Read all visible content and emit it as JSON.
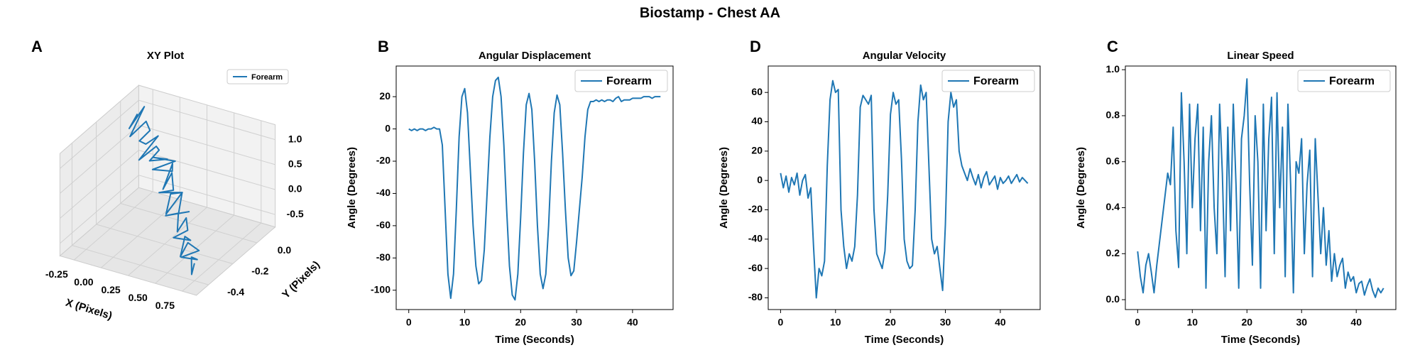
{
  "title": "Biostamp - Chest AA",
  "chart_data": [
    {
      "type": "line3d",
      "panel": "A",
      "title": "XY Plot",
      "xlabel": "X (Pixels)",
      "ylabel": "Y (Pixels)",
      "series": [
        {
          "name": "Forearm",
          "color": "#1f77b4",
          "x": [
            -0.28,
            -0.3,
            -0.25,
            -0.27,
            -0.2,
            -0.22,
            -0.15,
            -0.18,
            -0.1,
            -0.12,
            -0.05,
            -0.08,
            0.0,
            0.03,
            -0.02,
            0.08,
            0.05,
            0.12,
            0.1,
            0.18,
            0.15,
            0.22,
            0.2,
            0.28,
            0.25,
            0.32,
            0.3,
            0.38,
            0.35,
            0.42,
            0.4,
            0.48,
            0.45,
            0.52,
            0.5,
            0.58,
            0.55,
            0.62,
            0.6,
            0.68,
            0.65,
            0.72,
            0.7,
            0.78,
            0.75
          ],
          "y": [
            0.05,
            0.0,
            0.08,
            -0.02,
            0.05,
            0.1,
            -0.05,
            0.03,
            0.06,
            -0.08,
            0.0,
            0.05,
            -0.1,
            0.02,
            -0.05,
            0.04,
            -0.12,
            -0.02,
            0.0,
            -0.15,
            -0.05,
            -0.1,
            -0.2,
            -0.08,
            -0.15,
            -0.25,
            -0.1,
            -0.2,
            -0.28,
            -0.15,
            -0.22,
            -0.3,
            -0.2,
            -0.25,
            -0.35,
            -0.28,
            -0.3,
            -0.4,
            -0.32,
            -0.3,
            -0.42,
            -0.35,
            -0.38,
            -0.45,
            -0.4
          ],
          "z": [
            1.0,
            0.8,
            1.1,
            0.7,
            0.9,
            0.6,
            0.75,
            0.5,
            0.65,
            0.45,
            0.6,
            0.4,
            0.55,
            0.35,
            0.5,
            0.3,
            0.45,
            0.25,
            0.35,
            0.2,
            0.3,
            0.1,
            0.25,
            0.05,
            0.15,
            0.0,
            0.1,
            -0.05,
            0.05,
            -0.1,
            0.0,
            -0.15,
            -0.1,
            -0.2,
            -0.15,
            -0.3,
            -0.2,
            -0.35,
            -0.25,
            -0.4,
            -0.3,
            -0.45,
            -0.35,
            -0.5,
            -0.4
          ]
        }
      ],
      "xlim": [
        -0.38,
        0.88
      ],
      "ylim": [
        -0.5,
        0.15
      ],
      "zlim": [
        -0.75,
        1.3
      ],
      "xticks": [
        -0.25,
        {
          "value": 0,
          "label": "0.00"
        },
        0.25,
        {
          "value": 0.5,
          "label": "0.50"
        },
        0.75
      ],
      "yticks": [
        -0.4,
        -0.2,
        {
          "value": 0,
          "label": "0.0"
        }
      ],
      "zticks": [
        -0.5,
        {
          "value": 0,
          "label": "0.0"
        },
        0.5,
        {
          "value": 1,
          "label": "1.0"
        }
      ],
      "grid": true,
      "legend": "upper right"
    },
    {
      "type": "line",
      "panel": "B",
      "title": "Angular Displacement",
      "xlabel": "Time (Seconds)",
      "ylabel": "Angle (Degrees)",
      "x": [
        0,
        0.5,
        1,
        1.5,
        2,
        2.5,
        3,
        3.5,
        4,
        4.5,
        5,
        5.5,
        6,
        6.5,
        7,
        7.5,
        8,
        8.5,
        9,
        9.5,
        10,
        10.5,
        11,
        11.5,
        12,
        12.5,
        13,
        13.5,
        14,
        14.5,
        15,
        15.5,
        16,
        16.5,
        17,
        17.5,
        18,
        18.5,
        19,
        19.5,
        20,
        20.5,
        21,
        21.5,
        22,
        22.5,
        23,
        23.5,
        24,
        24.5,
        25,
        25.5,
        26,
        26.5,
        27,
        27.5,
        28,
        28.5,
        29,
        29.5,
        30,
        30.5,
        31,
        31.5,
        32,
        32.5,
        33,
        33.5,
        34,
        34.5,
        35,
        35.5,
        36,
        36.5,
        37,
        37.5,
        38,
        38.5,
        39,
        39.5,
        40,
        40.5,
        41,
        41.5,
        42,
        42.5,
        43,
        43.5,
        44,
        44.5,
        45
      ],
      "series": [
        {
          "name": "Forearm",
          "color": "#1f77b4",
          "values": [
            0,
            -1,
            0,
            -1,
            0,
            0,
            -1,
            0,
            0,
            1,
            0,
            0,
            -10,
            -50,
            -90,
            -105,
            -90,
            -50,
            -5,
            20,
            25,
            10,
            -25,
            -60,
            -85,
            -96,
            -94,
            -75,
            -40,
            -5,
            20,
            30,
            32,
            20,
            -10,
            -50,
            -85,
            -103,
            -106,
            -90,
            -55,
            -15,
            15,
            22,
            12,
            -20,
            -60,
            -90,
            -99,
            -90,
            -60,
            -20,
            10,
            21,
            15,
            -15,
            -50,
            -80,
            -91,
            -88,
            -70,
            -50,
            -30,
            -5,
            12,
            17,
            17,
            18,
            17,
            18,
            17,
            18,
            18,
            17,
            19,
            20,
            17,
            18,
            18,
            18,
            19,
            19,
            19,
            19,
            20,
            20,
            20,
            19,
            20,
            20,
            20
          ]
        }
      ],
      "xlim": [
        -2.25,
        47.25
      ],
      "ylim": [
        -112,
        39
      ],
      "xticks": [
        0,
        10,
        20,
        30,
        40
      ],
      "yticks": [
        -100,
        -80,
        -60,
        -40,
        -20,
        0,
        20
      ],
      "legend": "upper right"
    },
    {
      "type": "line",
      "panel": "D",
      "title": "Angular Velocity",
      "xlabel": "Time (Seconds)",
      "ylabel": "Angle (Degrees)",
      "x": [
        0,
        0.5,
        1,
        1.5,
        2,
        2.5,
        3,
        3.5,
        4,
        4.5,
        5,
        5.5,
        6,
        6.5,
        7,
        7.5,
        8,
        8.5,
        9,
        9.5,
        10,
        10.5,
        11,
        11.5,
        12,
        12.5,
        13,
        13.5,
        14,
        14.5,
        15,
        15.5,
        16,
        16.5,
        17,
        17.5,
        18,
        18.5,
        19,
        19.5,
        20,
        20.5,
        21,
        21.5,
        22,
        22.5,
        23,
        23.5,
        24,
        24.5,
        25,
        25.5,
        26,
        26.5,
        27,
        27.5,
        28,
        28.5,
        29,
        29.5,
        30,
        30.5,
        31,
        31.5,
        32,
        32.5,
        33,
        33.5,
        34,
        34.5,
        35,
        35.5,
        36,
        36.5,
        37,
        37.5,
        38,
        38.5,
        39,
        39.5,
        40,
        40.5,
        41,
        41.5,
        42,
        42.5,
        43,
        43.5,
        44,
        44.5,
        45
      ],
      "series": [
        {
          "name": "Forearm",
          "color": "#1f77b4",
          "values": [
            5,
            -5,
            3,
            -8,
            2,
            -3,
            5,
            -10,
            0,
            4,
            -12,
            -5,
            -45,
            -80,
            -60,
            -65,
            -55,
            10,
            55,
            68,
            60,
            62,
            -20,
            -45,
            -60,
            -50,
            -55,
            -45,
            -10,
            50,
            58,
            55,
            52,
            58,
            -20,
            -50,
            -55,
            -60,
            -48,
            -10,
            45,
            60,
            52,
            55,
            15,
            -40,
            -55,
            -60,
            -58,
            -20,
            40,
            65,
            55,
            60,
            10,
            -40,
            -50,
            -45,
            -60,
            -75,
            -30,
            40,
            60,
            50,
            55,
            20,
            10,
            5,
            0,
            8,
            2,
            -3,
            4,
            -5,
            2,
            6,
            -3,
            0,
            3,
            -6,
            2,
            -2,
            0,
            3,
            -2,
            1,
            4,
            -1,
            2,
            0,
            -2
          ]
        }
      ],
      "xlim": [
        -2.25,
        47.25
      ],
      "ylim": [
        -88,
        78
      ],
      "xticks": [
        0,
        10,
        20,
        30,
        40
      ],
      "yticks": [
        -80,
        -60,
        -40,
        -20,
        0,
        20,
        40,
        60
      ],
      "legend": "upper right"
    },
    {
      "type": "line",
      "panel": "C",
      "title": "Linear Speed",
      "xlabel": "Time (Seconds)",
      "ylabel": "Angle (Degrees)",
      "x": [
        0,
        0.5,
        1,
        1.5,
        2,
        2.5,
        3,
        3.5,
        4,
        4.5,
        5,
        5.5,
        6,
        6.5,
        7,
        7.5,
        8,
        8.5,
        9,
        9.5,
        10,
        10.5,
        11,
        11.5,
        12,
        12.5,
        13,
        13.5,
        14,
        14.5,
        15,
        15.5,
        16,
        16.5,
        17,
        17.5,
        18,
        18.5,
        19,
        19.5,
        20,
        20.5,
        21,
        21.5,
        22,
        22.5,
        23,
        23.5,
        24,
        24.5,
        25,
        25.5,
        26,
        26.5,
        27,
        27.5,
        28,
        28.5,
        29,
        29.5,
        30,
        30.5,
        31,
        31.5,
        32,
        32.5,
        33,
        33.5,
        34,
        34.5,
        35,
        35.5,
        36,
        36.5,
        37,
        37.5,
        38,
        38.5,
        39,
        39.5,
        40,
        40.5,
        41,
        41.5,
        42,
        42.5,
        43,
        43.5,
        44,
        44.5,
        45
      ],
      "series": [
        {
          "name": "Forearm",
          "color": "#1f77b4",
          "values": [
            0.21,
            0.1,
            0.03,
            0.15,
            0.2,
            0.12,
            0.03,
            0.15,
            0.25,
            0.35,
            0.45,
            0.55,
            0.5,
            0.75,
            0.3,
            0.14,
            0.9,
            0.6,
            0.2,
            0.85,
            0.4,
            0.7,
            0.85,
            0.3,
            0.75,
            0.05,
            0.6,
            0.8,
            0.4,
            0.2,
            0.85,
            0.55,
            0.1,
            0.75,
            0.3,
            0.85,
            0.5,
            0.05,
            0.7,
            0.8,
            0.96,
            0.5,
            0.15,
            0.8,
            0.6,
            0.05,
            0.85,
            0.3,
            0.7,
            0.88,
            0.2,
            0.9,
            0.4,
            0.75,
            0.1,
            0.85,
            0.5,
            0.03,
            0.6,
            0.55,
            0.7,
            0.2,
            0.5,
            0.65,
            0.1,
            0.7,
            0.45,
            0.2,
            0.4,
            0.15,
            0.3,
            0.08,
            0.2,
            0.1,
            0.15,
            0.18,
            0.05,
            0.12,
            0.08,
            0.1,
            0.03,
            0.07,
            0.08,
            0.02,
            0.06,
            0.09,
            0.04,
            0.01,
            0.05,
            0.03,
            0.05
          ]
        }
      ],
      "xlim": [
        -2.25,
        47.25
      ],
      "ylim": [
        -0.043,
        1.016
      ],
      "xticks": [
        0,
        10,
        20,
        30,
        40
      ],
      "yticks": [
        {
          "value": 0,
          "label": "0.0"
        },
        0.2,
        0.4,
        0.6,
        0.8,
        {
          "value": 1,
          "label": "1.0"
        }
      ],
      "legend": "upper right"
    }
  ]
}
